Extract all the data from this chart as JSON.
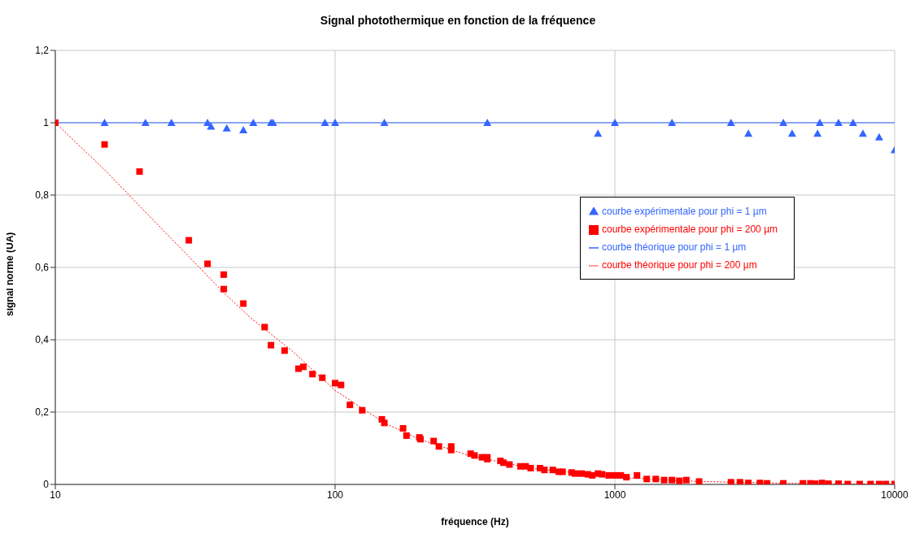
{
  "chart_data": {
    "type": "scatter",
    "title": "Signal photothermique en fonction de la fréquence",
    "xlabel": "fréquence (Hz)",
    "ylabel": "signal normé (UA)",
    "log": "x",
    "xlim": [
      10,
      10000
    ],
    "xticks": [
      10,
      100,
      1000,
      10000
    ],
    "ylim": [
      0,
      1.2
    ],
    "yticks": [
      0,
      {
        "value": 0.2,
        "label": "0,2"
      },
      {
        "value": 0.4,
        "label": "0,4"
      },
      {
        "value": 0.6,
        "label": "0,6"
      },
      {
        "value": 0.8,
        "label": "0,8"
      },
      1,
      {
        "value": 1.2,
        "label": "1,2"
      }
    ],
    "grid": true,
    "legend": "right",
    "series": [
      {
        "name": "courbe théorique pour phi = 1 µm",
        "type": "line",
        "line_style": "solid",
        "marker": "none",
        "color": "#3366ff",
        "x": [
          10,
          10000
        ],
        "values": [
          1,
          1
        ]
      },
      {
        "name": "courbe théorique pour phi = 200 µm",
        "type": "line",
        "line_style": "dotted",
        "marker": "none",
        "color": "#ff0000",
        "x": [
          10,
          15,
          20,
          30,
          40,
          50,
          70,
          100,
          150,
          200,
          300,
          500,
          1000,
          2000,
          5000,
          10000
        ],
        "values": [
          1,
          0.87,
          0.77,
          0.63,
          0.53,
          0.46,
          0.37,
          0.26,
          0.17,
          0.125,
          0.08,
          0.045,
          0.02,
          0.008,
          0.002,
          0.001
        ]
      },
      {
        "name": "courbe expérimentale pour phi = 1 µm",
        "marker": "triangle",
        "color": "#3366ff",
        "x": [
          15,
          21,
          26,
          35,
          36,
          41,
          47,
          51,
          59,
          60,
          92,
          100,
          150,
          350,
          870,
          1000,
          1600,
          2600,
          3000,
          4000,
          4300,
          5300,
          5400,
          6300,
          7100,
          7700,
          8800,
          10000
        ],
        "values": [
          1,
          1,
          1,
          1,
          0.99,
          0.985,
          0.98,
          1,
          1,
          1,
          1,
          1,
          1,
          1,
          0.97,
          1,
          1,
          1,
          0.97,
          1,
          0.97,
          0.97,
          1,
          1,
          1,
          0.97,
          0.96,
          0.925
        ]
      },
      {
        "name": "courbe expérimentale pour phi = 200 µm",
        "marker": "square",
        "color": "#ff0000",
        "x": [
          10,
          15,
          20,
          30,
          35,
          40,
          40,
          47,
          56,
          59,
          66,
          74,
          77,
          83,
          90,
          100,
          105,
          113,
          125,
          147,
          150,
          175,
          180,
          200,
          202,
          225,
          235,
          260,
          260,
          305,
          315,
          335,
          350,
          350,
          390,
          400,
          420,
          460,
          480,
          500,
          540,
          560,
          600,
          630,
          650,
          700,
          720,
          760,
          800,
          830,
          870,
          900,
          950,
          1000,
          1050,
          1100,
          1200,
          1300,
          1400,
          1500,
          1600,
          1700,
          1800,
          2000,
          2600,
          2800,
          3000,
          3300,
          3500,
          4000,
          4700,
          5000,
          5200,
          5500,
          5800,
          6300,
          6800,
          7500,
          8200,
          8800,
          9300,
          10000
        ],
        "values": [
          1,
          0.94,
          0.865,
          0.675,
          0.61,
          0.58,
          0.54,
          0.5,
          0.435,
          0.385,
          0.37,
          0.32,
          0.325,
          0.305,
          0.295,
          0.28,
          0.275,
          0.22,
          0.205,
          0.18,
          0.17,
          0.155,
          0.135,
          0.13,
          0.125,
          0.12,
          0.105,
          0.105,
          0.095,
          0.085,
          0.08,
          0.075,
          0.075,
          0.07,
          0.065,
          0.06,
          0.055,
          0.05,
          0.05,
          0.045,
          0.045,
          0.04,
          0.04,
          0.035,
          0.035,
          0.033,
          0.03,
          0.03,
          0.028,
          0.025,
          0.03,
          0.028,
          0.025,
          0.025,
          0.025,
          0.02,
          0.025,
          0.015,
          0.015,
          0.012,
          0.012,
          0.01,
          0.012,
          0.008,
          0.006,
          0.006,
          0.004,
          0.004,
          0.003,
          0.003,
          0.003,
          0.003,
          0.002,
          0.004,
          0.002,
          0.002,
          0.001,
          0.001,
          0.001,
          0.001,
          0.001,
          0.001
        ]
      }
    ]
  }
}
